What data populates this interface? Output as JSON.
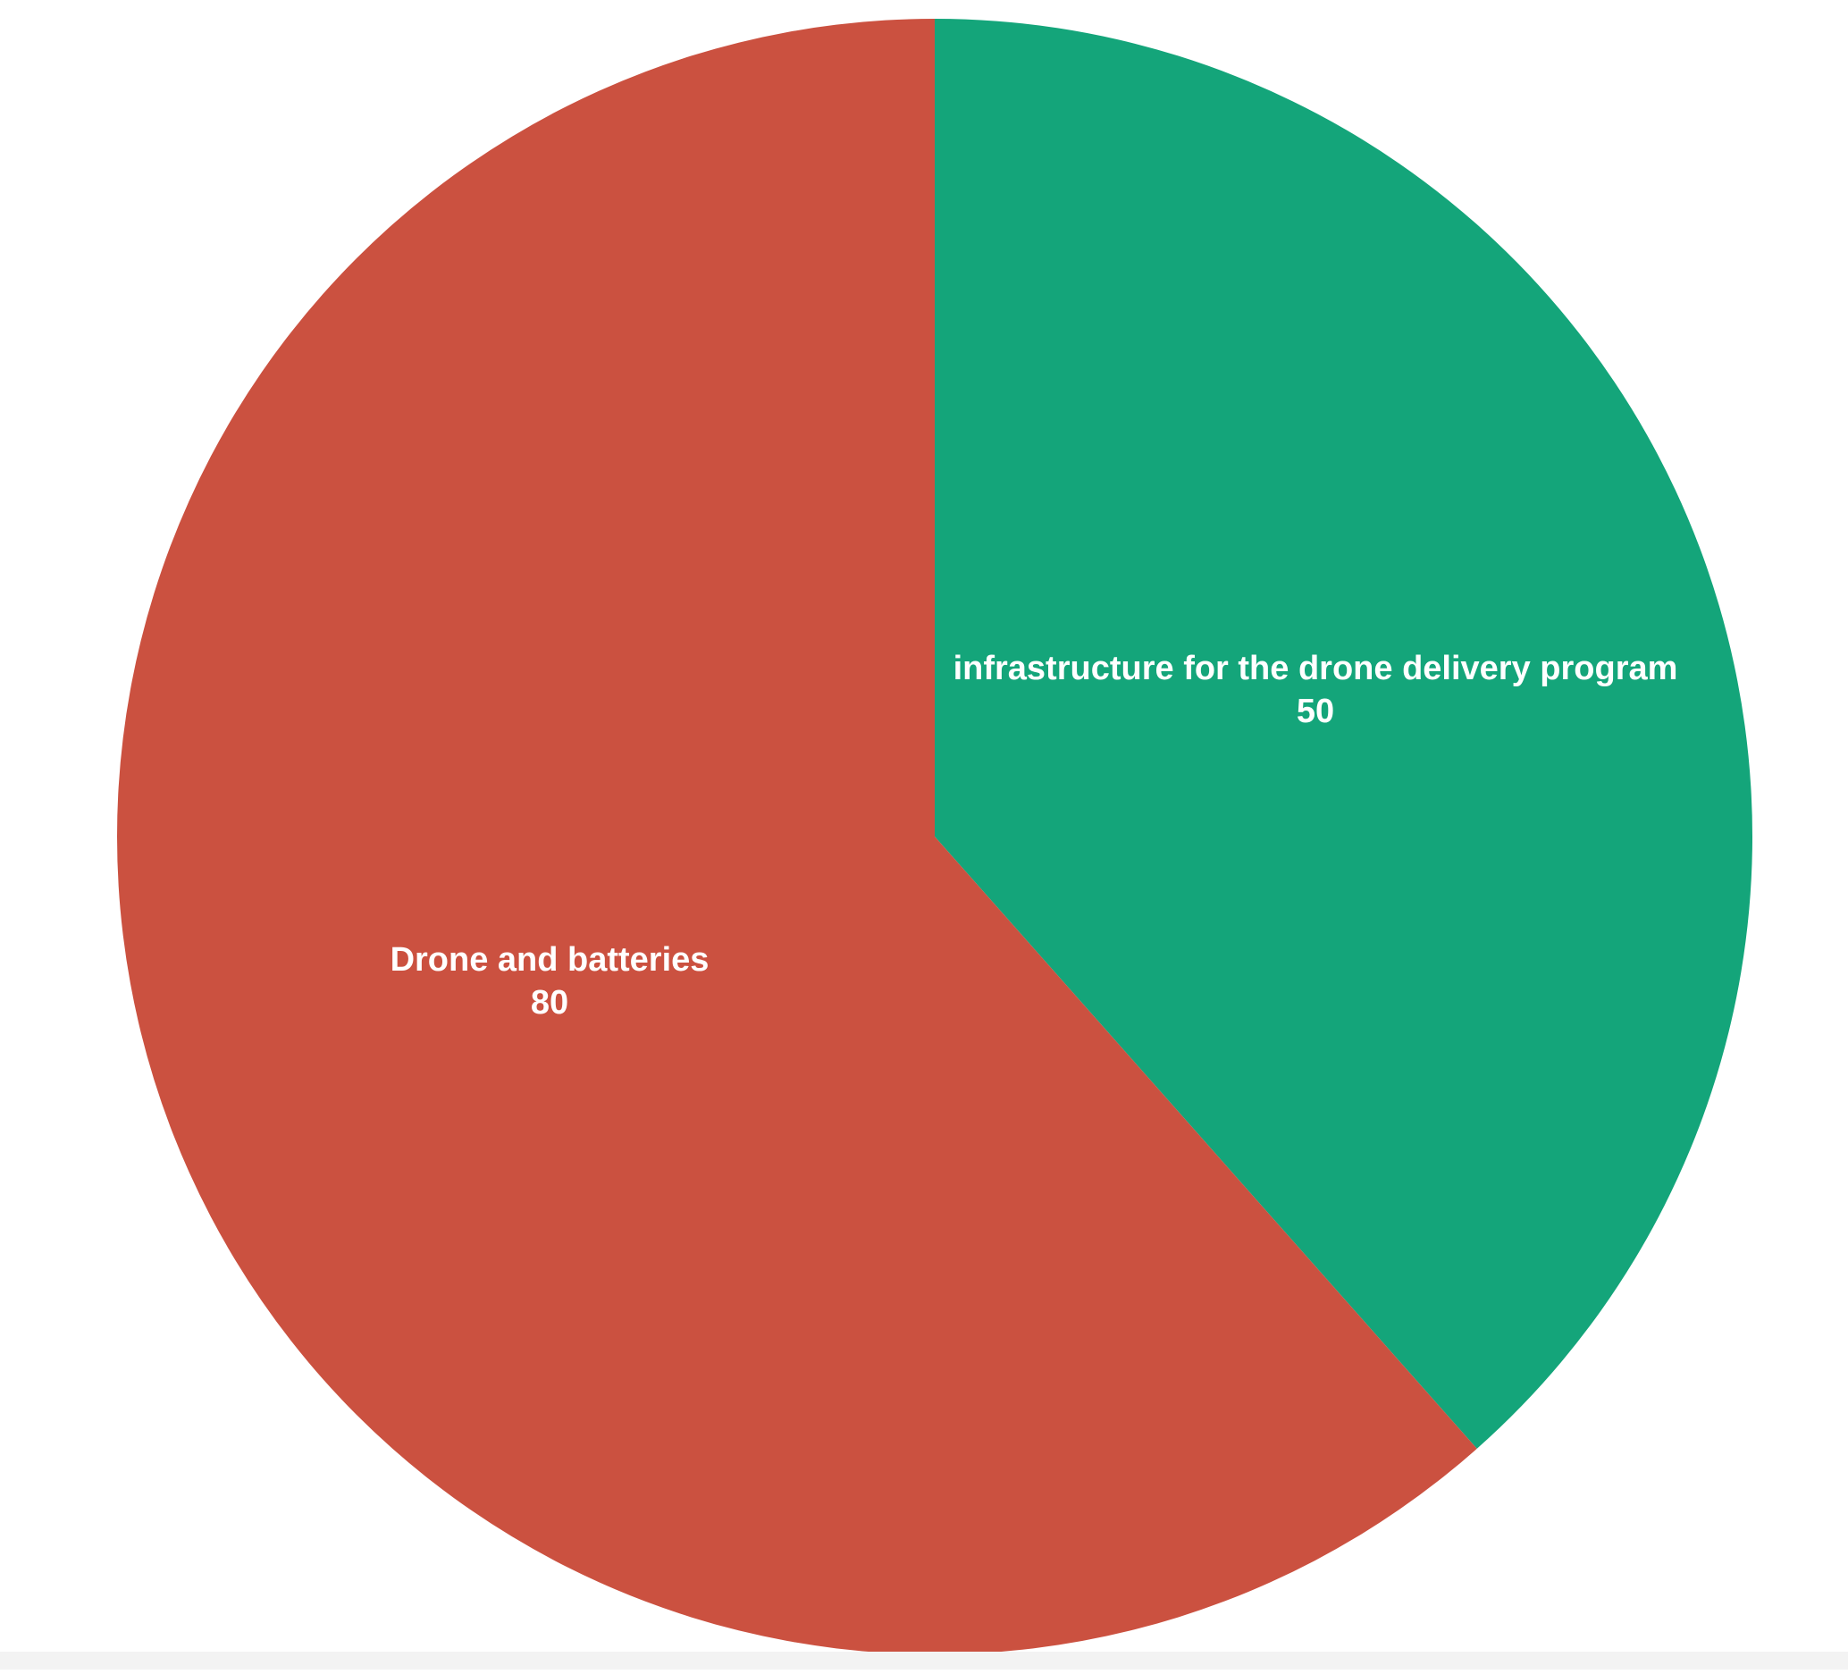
{
  "chart_data": {
    "type": "pie",
    "start_angle_deg": 0,
    "direction": "clockwise",
    "slices": [
      {
        "label": "infrastructure for the drone delivery program",
        "value": 50,
        "color": "#14a57a"
      },
      {
        "label": "Drone and batteries",
        "value": 80,
        "color": "#cb5140"
      }
    ],
    "title": "",
    "legend": "none"
  }
}
